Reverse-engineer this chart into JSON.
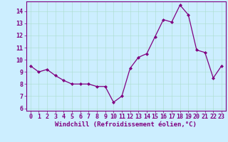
{
  "x": [
    0,
    1,
    2,
    3,
    4,
    5,
    6,
    7,
    8,
    9,
    10,
    11,
    12,
    13,
    14,
    15,
    16,
    17,
    18,
    19,
    20,
    21,
    22,
    23
  ],
  "y": [
    9.5,
    9.0,
    9.2,
    8.7,
    8.3,
    8.0,
    8.0,
    8.0,
    7.8,
    7.8,
    6.5,
    7.0,
    9.3,
    10.2,
    10.5,
    11.9,
    13.3,
    13.1,
    14.5,
    13.7,
    10.8,
    10.6,
    8.5,
    9.5
  ],
  "line_color": "#800080",
  "marker": "D",
  "marker_size": 2.0,
  "linewidth": 0.9,
  "bg_color": "#cceeff",
  "grid_color": "#aaddcc",
  "xlabel": "Windchill (Refroidissement éolien,°C)",
  "xlabel_fontsize": 6.5,
  "xlim": [
    -0.5,
    23.5
  ],
  "ylim": [
    5.8,
    14.8
  ],
  "yticks": [
    6,
    7,
    8,
    9,
    10,
    11,
    12,
    13,
    14
  ],
  "xticks": [
    0,
    1,
    2,
    3,
    4,
    5,
    6,
    7,
    8,
    9,
    10,
    11,
    12,
    13,
    14,
    15,
    16,
    17,
    18,
    19,
    20,
    21,
    22,
    23
  ],
  "tick_fontsize": 6,
  "tick_color": "#800080",
  "label_color": "#800080",
  "spine_color": "#800080"
}
